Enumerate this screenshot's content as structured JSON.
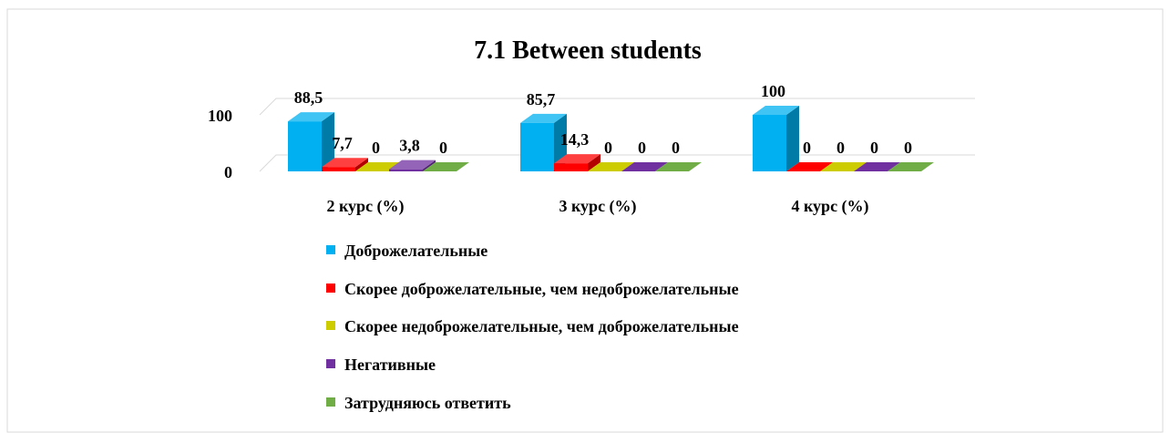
{
  "chart_data": {
    "type": "bar3d",
    "title": "7.1 Between students",
    "categories": [
      "2 курс (%)",
      "3 курс (%)",
      "4 курс (%)"
    ],
    "series": [
      {
        "name": "Доброжелательные",
        "color": "#00b0f0",
        "values": [
          88.5,
          85.7,
          100
        ],
        "value_labels": [
          "88,5",
          "85,7",
          "100"
        ]
      },
      {
        "name": "Скорее доброжелательные, чем недоброжелательные",
        "color": "#ff0000",
        "values": [
          7.7,
          14.3,
          0
        ],
        "value_labels": [
          "7,7",
          "14,3",
          "0"
        ]
      },
      {
        "name": "Скорее недоброжелательные, чем доброжелательные",
        "color": "#cccc00",
        "values": [
          0,
          0,
          0
        ],
        "value_labels": [
          "0",
          "0",
          "0"
        ]
      },
      {
        "name": "Негативные",
        "color": "#7030a0",
        "values": [
          3.8,
          0,
          0
        ],
        "value_labels": [
          "3,8",
          "0",
          "0"
        ]
      },
      {
        "name": "Затрудняюсь ответить",
        "color": "#70ad47",
        "values": [
          0,
          0,
          0
        ],
        "value_labels": [
          "0",
          "0",
          "0"
        ]
      }
    ],
    "ylim": [
      0,
      100
    ],
    "yticks": [
      0,
      100
    ],
    "grid": true,
    "legend": "bottom"
  }
}
